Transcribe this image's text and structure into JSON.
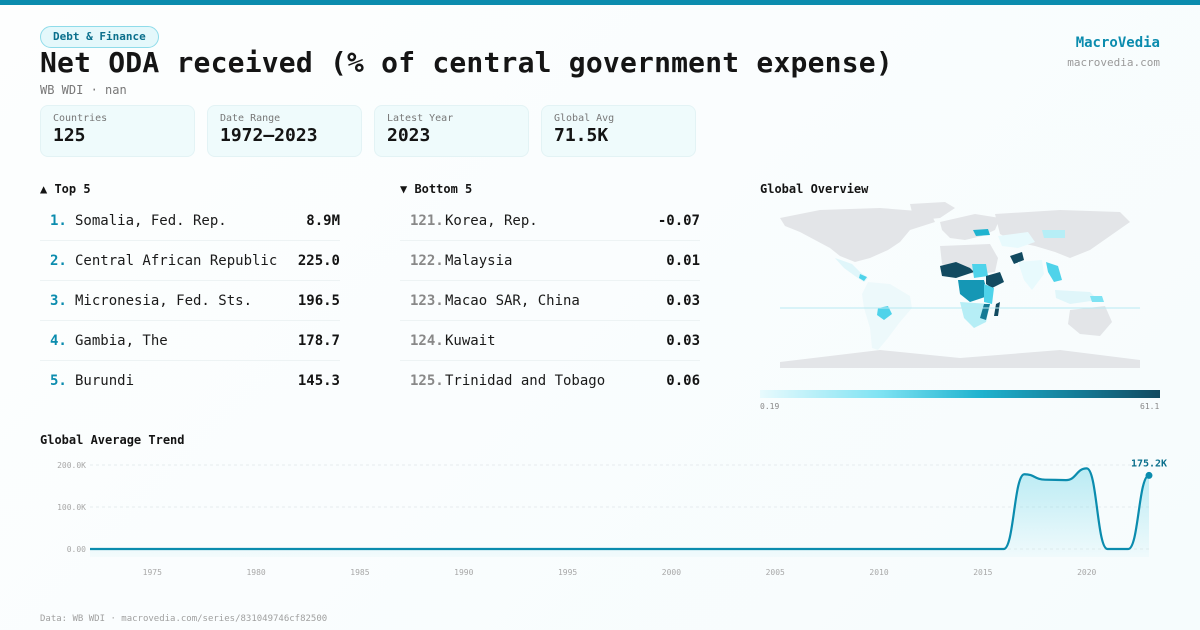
{
  "header": {
    "category_badge": "Debt & Finance",
    "title": "Net ODA received (% of central government expense)",
    "subtitle": "WB WDI · nan",
    "brand": "MacroVedia",
    "brand_url": "macrovedia.com"
  },
  "stats": [
    {
      "label": "Countries",
      "value": "125"
    },
    {
      "label": "Date Range",
      "value": "1972–2023"
    },
    {
      "label": "Latest Year",
      "value": "2023"
    },
    {
      "label": "Global Avg",
      "value": "71.5K"
    }
  ],
  "top5": {
    "heading": "▲ Top 5",
    "items": [
      {
        "rank": "1.",
        "name": "Somalia, Fed. Rep.",
        "value": "8.9M"
      },
      {
        "rank": "2.",
        "name": "Central African Republic",
        "value": "225.0"
      },
      {
        "rank": "3.",
        "name": "Micronesia, Fed. Sts.",
        "value": "196.5"
      },
      {
        "rank": "4.",
        "name": "Gambia, The",
        "value": "178.7"
      },
      {
        "rank": "5.",
        "name": "Burundi",
        "value": "145.3"
      }
    ]
  },
  "bottom5": {
    "heading": "▼ Bottom 5",
    "items": [
      {
        "rank": "121.",
        "name": "Korea, Rep.",
        "value": "-0.07"
      },
      {
        "rank": "122.",
        "name": "Malaysia",
        "value": "0.01"
      },
      {
        "rank": "123.",
        "name": "Macao SAR, China",
        "value": "0.03"
      },
      {
        "rank": "124.",
        "name": "Kuwait",
        "value": "0.03"
      },
      {
        "rank": "125.",
        "name": "Trinidad and Tobago",
        "value": "0.06"
      }
    ]
  },
  "map": {
    "heading": "Global Overview",
    "legend_min": "0.19",
    "legend_max": "61.1",
    "colors": {
      "no_data": "#e3e5e8",
      "low": "#e8fafd",
      "mid": "#4fd3ea",
      "high": "#124a60"
    }
  },
  "trend": {
    "heading": "Global Average Trend",
    "last_label": "175.2K"
  },
  "chart_data": {
    "type": "area",
    "title": "Global Average Trend",
    "xlabel": "",
    "ylabel": "",
    "x": [
      1972,
      1973,
      1974,
      1975,
      1976,
      1977,
      1978,
      1979,
      1980,
      1981,
      1982,
      1983,
      1984,
      1985,
      1986,
      1987,
      1988,
      1989,
      1990,
      1991,
      1992,
      1993,
      1994,
      1995,
      1996,
      1997,
      1998,
      1999,
      2000,
      2001,
      2002,
      2003,
      2004,
      2005,
      2006,
      2007,
      2008,
      2009,
      2010,
      2011,
      2012,
      2013,
      2014,
      2015,
      2016,
      2017,
      2018,
      2019,
      2020,
      2021,
      2022,
      2023
    ],
    "values": [
      0,
      0,
      0,
      0,
      0,
      0,
      0,
      0,
      0,
      0,
      0,
      0,
      0,
      0,
      0,
      0,
      0,
      0,
      0,
      0,
      0,
      0,
      0,
      0,
      0,
      0,
      0,
      0,
      0,
      0,
      0,
      0,
      0,
      0,
      0,
      0,
      0,
      0,
      0,
      0,
      0,
      0,
      0,
      0,
      0,
      178000,
      165000,
      164000,
      192000,
      0,
      0,
      175200
    ],
    "ylim": [
      0,
      200000
    ],
    "yticks": [
      "0.00",
      "100.0K",
      "200.0K"
    ],
    "ytick_values": [
      0,
      100000,
      200000
    ],
    "xticks": [
      1975,
      1980,
      1985,
      1990,
      1995,
      2000,
      2005,
      2010,
      2015,
      2020
    ],
    "grid": true,
    "line_color": "#0b8cae",
    "annotation": "175.2K"
  },
  "footer": "Data: WB WDI · macrovedia.com/series/831049746cf82500"
}
